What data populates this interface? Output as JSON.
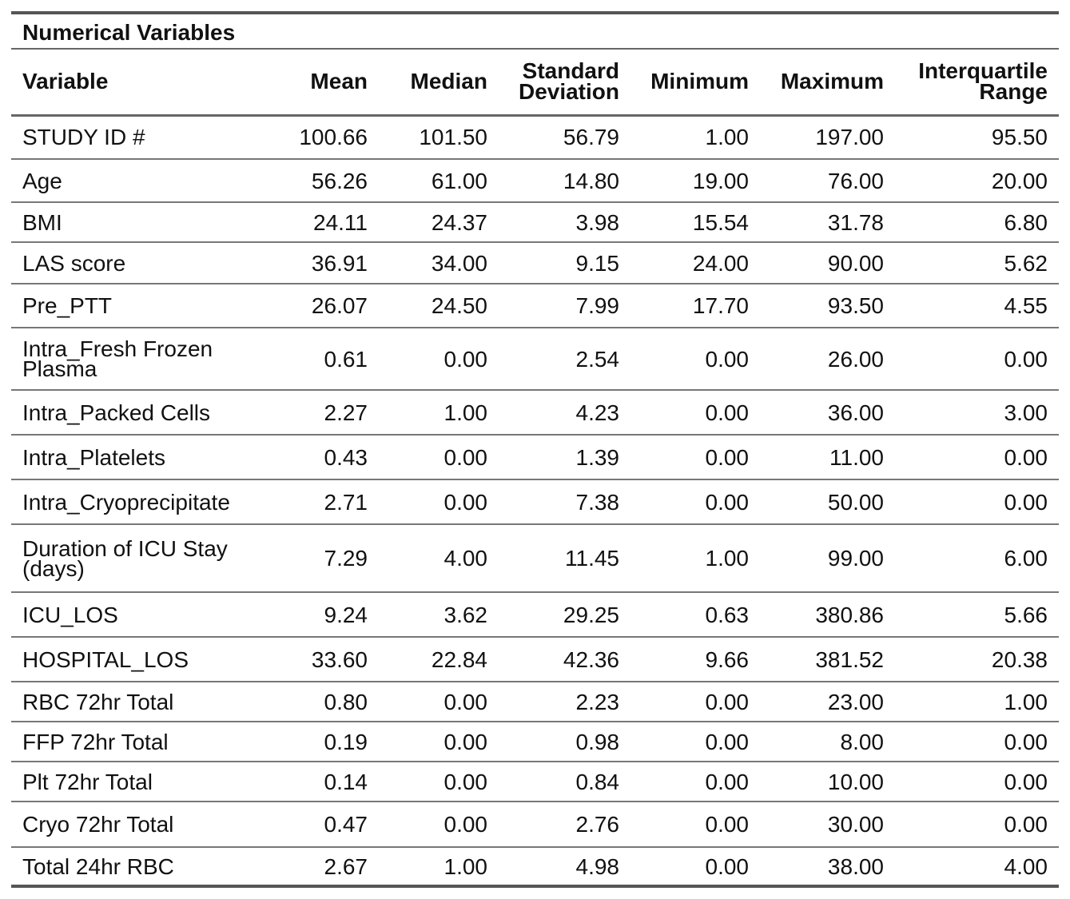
{
  "caption": "Numerical Variables",
  "headers": [
    {
      "lines": [
        "Variable"
      ]
    },
    {
      "lines": [
        "Mean"
      ]
    },
    {
      "lines": [
        "Median"
      ]
    },
    {
      "lines": [
        "Standard",
        "Deviation"
      ]
    },
    {
      "lines": [
        "Minimum"
      ]
    },
    {
      "lines": [
        "Maximum"
      ]
    },
    {
      "lines": [
        "Interquartile",
        "Range"
      ]
    }
  ],
  "rows": [
    {
      "variable": [
        "STUDY ID #"
      ],
      "values": [
        "100.66",
        "101.50",
        "56.79",
        "1.00",
        "197.00",
        "95.50"
      ]
    },
    {
      "variable": [
        "Age"
      ],
      "values": [
        "56.26",
        "61.00",
        "14.80",
        "19.00",
        "76.00",
        "20.00"
      ]
    },
    {
      "variable": [
        "BMI"
      ],
      "values": [
        "24.11",
        "24.37",
        "3.98",
        "15.54",
        "31.78",
        "6.80"
      ]
    },
    {
      "variable": [
        "LAS score"
      ],
      "values": [
        "36.91",
        "34.00",
        "9.15",
        "24.00",
        "90.00",
        "5.62"
      ]
    },
    {
      "variable": [
        "Pre_PTT"
      ],
      "values": [
        "26.07",
        "24.50",
        "7.99",
        "17.70",
        "93.50",
        "4.55"
      ]
    },
    {
      "variable": [
        "Intra_Fresh Frozen",
        "Plasma"
      ],
      "values": [
        "0.61",
        "0.00",
        "2.54",
        "0.00",
        "26.00",
        "0.00"
      ]
    },
    {
      "variable": [
        "Intra_Packed Cells"
      ],
      "values": [
        "2.27",
        "1.00",
        "4.23",
        "0.00",
        "36.00",
        "3.00"
      ]
    },
    {
      "variable": [
        "Intra_Platelets"
      ],
      "values": [
        "0.43",
        "0.00",
        "1.39",
        "0.00",
        "11.00",
        "0.00"
      ]
    },
    {
      "variable": [
        "Intra_Cryoprecipitate"
      ],
      "values": [
        "2.71",
        "0.00",
        "7.38",
        "0.00",
        "50.00",
        "0.00"
      ]
    },
    {
      "variable": [
        "Duration of ICU Stay",
        "(days)"
      ],
      "values": [
        "7.29",
        "4.00",
        "11.45",
        "1.00",
        "99.00",
        "6.00"
      ]
    },
    {
      "variable": [
        "ICU_LOS"
      ],
      "values": [
        "9.24",
        "3.62",
        "29.25",
        "0.63",
        "380.86",
        "5.66"
      ]
    },
    {
      "variable": [
        "HOSPITAL_LOS"
      ],
      "values": [
        "33.60",
        "22.84",
        "42.36",
        "9.66",
        "381.52",
        "20.38"
      ]
    },
    {
      "variable": [
        "RBC 72hr Total"
      ],
      "values": [
        "0.80",
        "0.00",
        "2.23",
        "0.00",
        "23.00",
        "1.00"
      ]
    },
    {
      "variable": [
        "FFP 72hr Total"
      ],
      "values": [
        "0.19",
        "0.00",
        "0.98",
        "0.00",
        "8.00",
        "0.00"
      ]
    },
    {
      "variable": [
        "Plt 72hr Total"
      ],
      "values": [
        "0.14",
        "0.00",
        "0.84",
        "0.00",
        "10.00",
        "0.00"
      ]
    },
    {
      "variable": [
        "Cryo 72hr Total"
      ],
      "values": [
        "0.47",
        "0.00",
        "2.76",
        "0.00",
        "30.00",
        "0.00"
      ]
    },
    {
      "variable": [
        "Total 24hr RBC"
      ],
      "values": [
        "2.67",
        "1.00",
        "4.98",
        "0.00",
        "38.00",
        "4.00"
      ]
    }
  ]
}
